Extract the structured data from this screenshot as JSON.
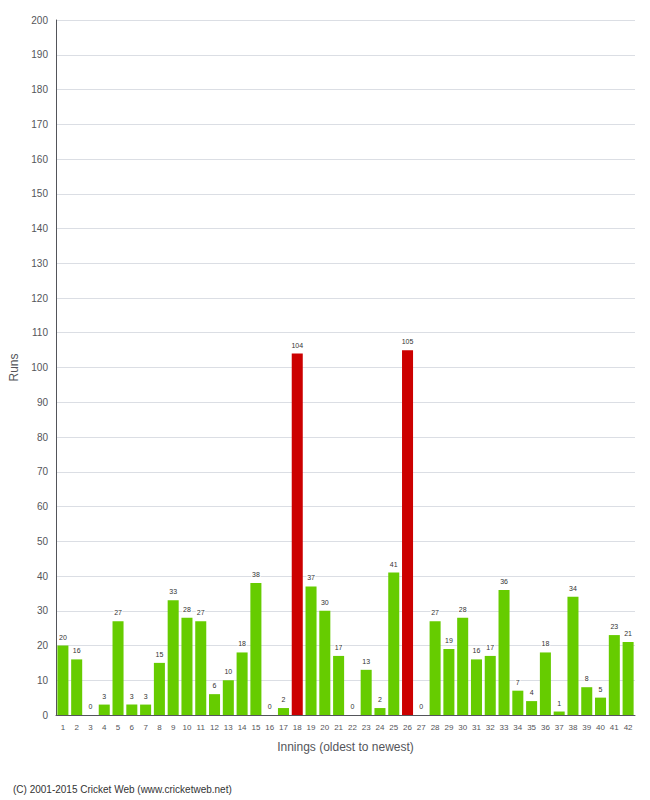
{
  "chart_data": {
    "type": "bar",
    "xlabel": "Innings (oldest to newest)",
    "ylabel": "Runs",
    "categories": [
      "1",
      "2",
      "3",
      "4",
      "5",
      "6",
      "7",
      "8",
      "9",
      "10",
      "11",
      "12",
      "13",
      "14",
      "15",
      "16",
      "17",
      "18",
      "19",
      "20",
      "21",
      "22",
      "23",
      "24",
      "25",
      "26",
      "27",
      "28",
      "29",
      "30",
      "31",
      "32",
      "33",
      "34",
      "35",
      "36",
      "37",
      "38",
      "39",
      "40",
      "41",
      "42"
    ],
    "values": [
      20,
      16,
      0,
      3,
      27,
      3,
      3,
      15,
      33,
      28,
      27,
      6,
      10,
      18,
      38,
      0,
      2,
      104,
      37,
      30,
      17,
      0,
      13,
      2,
      41,
      105,
      0,
      27,
      19,
      28,
      16,
      17,
      36,
      7,
      4,
      18,
      1,
      34,
      8,
      5,
      23,
      21
    ],
    "colors": [
      "#66cc00",
      "#66cc00",
      "#66cc00",
      "#66cc00",
      "#66cc00",
      "#66cc00",
      "#66cc00",
      "#66cc00",
      "#66cc00",
      "#66cc00",
      "#66cc00",
      "#66cc00",
      "#66cc00",
      "#66cc00",
      "#66cc00",
      "#66cc00",
      "#66cc00",
      "#cc0000",
      "#66cc00",
      "#66cc00",
      "#66cc00",
      "#66cc00",
      "#66cc00",
      "#66cc00",
      "#66cc00",
      "#cc0000",
      "#66cc00",
      "#66cc00",
      "#66cc00",
      "#66cc00",
      "#66cc00",
      "#66cc00",
      "#66cc00",
      "#66cc00",
      "#66cc00",
      "#66cc00",
      "#66cc00",
      "#66cc00",
      "#66cc00",
      "#66cc00",
      "#66cc00",
      "#66cc00"
    ],
    "ylim": [
      0,
      200
    ],
    "yticks": [
      0,
      10,
      20,
      30,
      40,
      50,
      60,
      70,
      80,
      90,
      100,
      110,
      120,
      130,
      140,
      150,
      160,
      170,
      180,
      190,
      200
    ],
    "grid": true,
    "data_labels": true,
    "annotations": [
      "(C) 2001-2015 Cricket Web (www.cricketweb.net)"
    ]
  }
}
